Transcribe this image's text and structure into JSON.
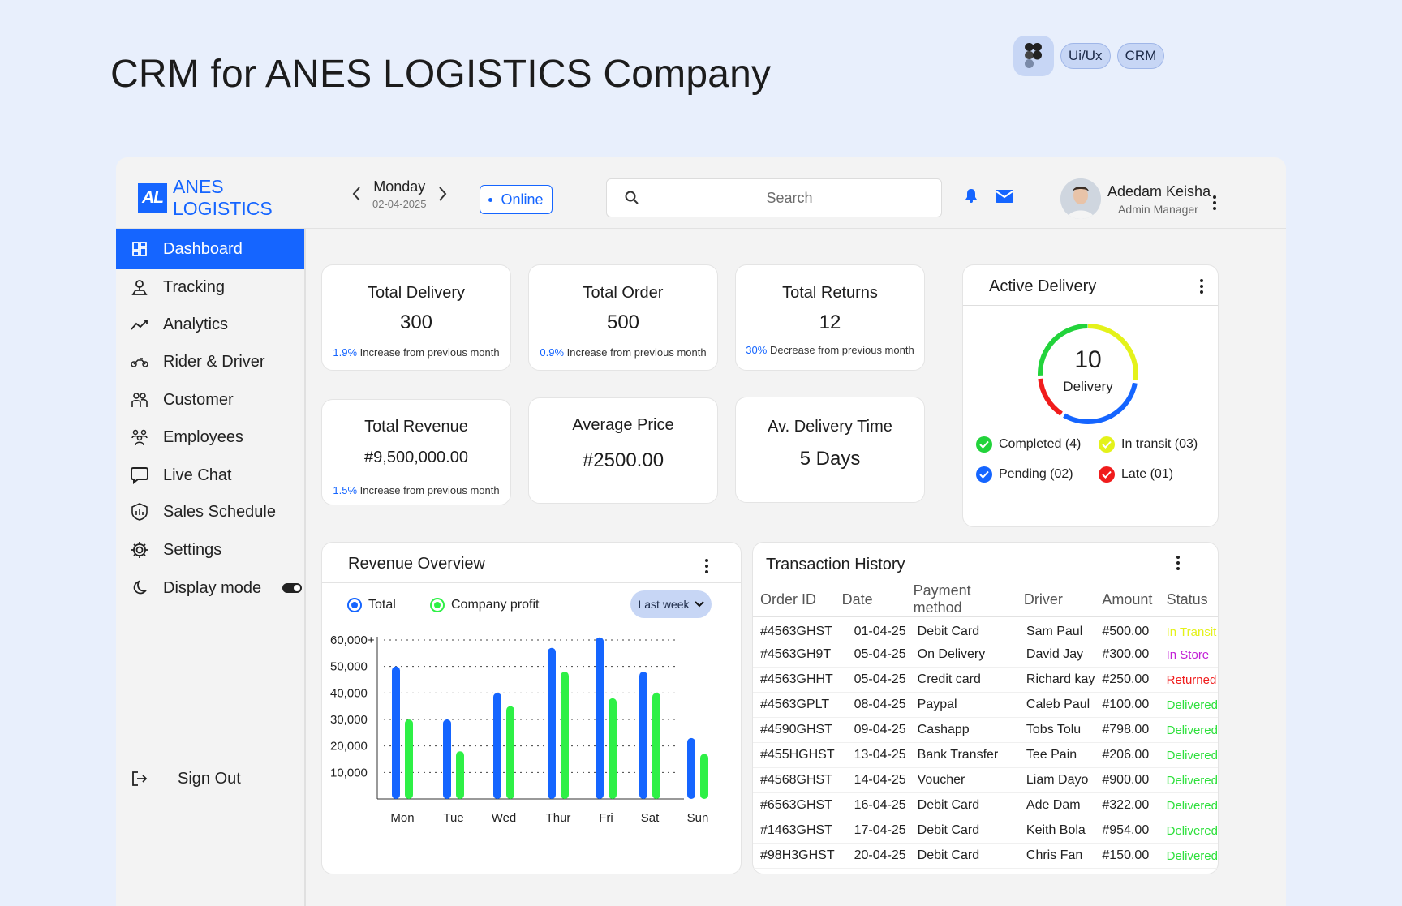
{
  "page": {
    "title": "CRM for ANES LOGISTICS Company",
    "tags": [
      "Ui/Ux",
      "CRM"
    ]
  },
  "topbar": {
    "logo_mark": "AL",
    "logo_line1": "ANES",
    "logo_line2": "LOGISTICS",
    "day": "Monday",
    "date": "02-04-2025",
    "status": "Online",
    "search_placeholder": "Search",
    "user_name": "Adedam Keisha",
    "user_role": "Admin Manager"
  },
  "sidebar": {
    "items": [
      {
        "label": "Dashboard",
        "icon": "dashboard-icon"
      },
      {
        "label": "Tracking",
        "icon": "location-icon"
      },
      {
        "label": "Analytics",
        "icon": "trend-icon"
      },
      {
        "label": "Rider & Driver",
        "icon": "motorbike-icon"
      },
      {
        "label": "Customer",
        "icon": "users-icon"
      },
      {
        "label": "Employees",
        "icon": "team-icon"
      },
      {
        "label": "Live Chat",
        "icon": "chat-icon"
      },
      {
        "label": "Sales Schedule",
        "icon": "shield-icon"
      },
      {
        "label": "Settings",
        "icon": "gear-icon"
      },
      {
        "label": "Display mode",
        "icon": "moon-icon"
      }
    ],
    "signout": "Sign Out"
  },
  "stats": {
    "total_delivery": {
      "title": "Total Delivery",
      "value": "300",
      "pct": "1.9%",
      "note": " Increase from previous month"
    },
    "total_order": {
      "title": "Total Order",
      "value": "500",
      "pct": "0.9%",
      "note": " Increase from previous month"
    },
    "total_returns": {
      "title": "Total Returns",
      "value": "12",
      "pct": "30%",
      "note": " Decrease from previous month"
    },
    "total_revenue": {
      "title": "Total Revenue",
      "value": "#9,500,000.00",
      "pct": "1.5%",
      "note": " Increase from previous month"
    },
    "average_price": {
      "title": "Average Price",
      "value": "#2500.00"
    },
    "delivery_time": {
      "title": "Av. Delivery Time",
      "value": "5 Days"
    }
  },
  "active_delivery": {
    "title": "Active Delivery",
    "count": "10",
    "count_label": "Delivery",
    "legend": [
      {
        "label": "Completed (4)",
        "color": "#22d33b"
      },
      {
        "label": "In transit (03)",
        "color": "#e4f21a"
      },
      {
        "label": "Pending (02)",
        "color": "#1565ff"
      },
      {
        "label": "Late (01)",
        "color": "#f01c1c"
      }
    ]
  },
  "revenue": {
    "title": "Revenue Overview",
    "legend_total": "Total",
    "legend_profit": "Company profit",
    "range": "Last week"
  },
  "chart_data": {
    "type": "bar",
    "title": "Revenue Overview",
    "categories": [
      "Mon",
      "Tue",
      "Wed",
      "Thur",
      "Fri",
      "Sat",
      "Sun"
    ],
    "series": [
      {
        "name": "Total",
        "color": "#1565ff",
        "values": [
          50000,
          30000,
          40000,
          57000,
          61000,
          48000,
          23000
        ]
      },
      {
        "name": "Company profit",
        "color": "#2ef046",
        "values": [
          30000,
          18000,
          35000,
          48000,
          38000,
          40000,
          17000
        ]
      }
    ],
    "yticks": [
      "60,000+",
      "50,000",
      "40,000",
      "30,000",
      "20,000",
      "10,000"
    ],
    "ylim": [
      0,
      60000
    ],
    "grid": true
  },
  "transactions": {
    "title": "Transaction History",
    "columns": [
      "Order ID",
      "Date",
      "Payment method",
      "Driver",
      "Amount",
      "Status"
    ],
    "rows": [
      {
        "id": "#4563GHST",
        "date": "01-04-25",
        "method": "Debit Card",
        "driver": "Sam Paul",
        "amount": "#500.00",
        "status": "In Transit",
        "color": "#e4f21a"
      },
      {
        "id": "#4563GH9T",
        "date": "05-04-25",
        "method": "On Delivery",
        "driver": "David Jay",
        "amount": "#300.00",
        "status": "In Store",
        "color": "#c21fd6"
      },
      {
        "id": "#4563GHHT",
        "date": "05-04-25",
        "method": "Credit card",
        "driver": "Richard kay",
        "amount": "#250.00",
        "status": "Returned",
        "color": "#f01c1c"
      },
      {
        "id": "#4563GPLT",
        "date": "08-04-25",
        "method": "Paypal",
        "driver": "Caleb Paul",
        "amount": "#100.00",
        "status": "Delivered",
        "color": "#2ee03c"
      },
      {
        "id": "#4590GHST",
        "date": "09-04-25",
        "method": "Cashapp",
        "driver": "Tobs Tolu",
        "amount": "#798.00",
        "status": "Delivered",
        "color": "#2ee03c"
      },
      {
        "id": "#455HGHST",
        "date": "13-04-25",
        "method": "Bank Transfer",
        "driver": "Tee Pain",
        "amount": "#206.00",
        "status": "Delivered",
        "color": "#2ee03c"
      },
      {
        "id": "#4568GHST",
        "date": "14-04-25",
        "method": "Voucher",
        "driver": "Liam Dayo",
        "amount": "#900.00",
        "status": "Delivered",
        "color": "#2ee03c"
      },
      {
        "id": "#6563GHST",
        "date": "16-04-25",
        "method": "Debit Card",
        "driver": "Ade Dam",
        "amount": "#322.00",
        "status": "Delivered",
        "color": "#2ee03c"
      },
      {
        "id": "#1463GHST",
        "date": "17-04-25",
        "method": "Debit Card",
        "driver": "Keith Bola",
        "amount": "#954.00",
        "status": "Delivered",
        "color": "#2ee03c"
      },
      {
        "id": "#98H3GHST",
        "date": "20-04-25",
        "method": "Debit Card",
        "driver": "Chris  Fan",
        "amount": "#150.00",
        "status": "Delivered",
        "color": "#2ee03c"
      }
    ]
  }
}
